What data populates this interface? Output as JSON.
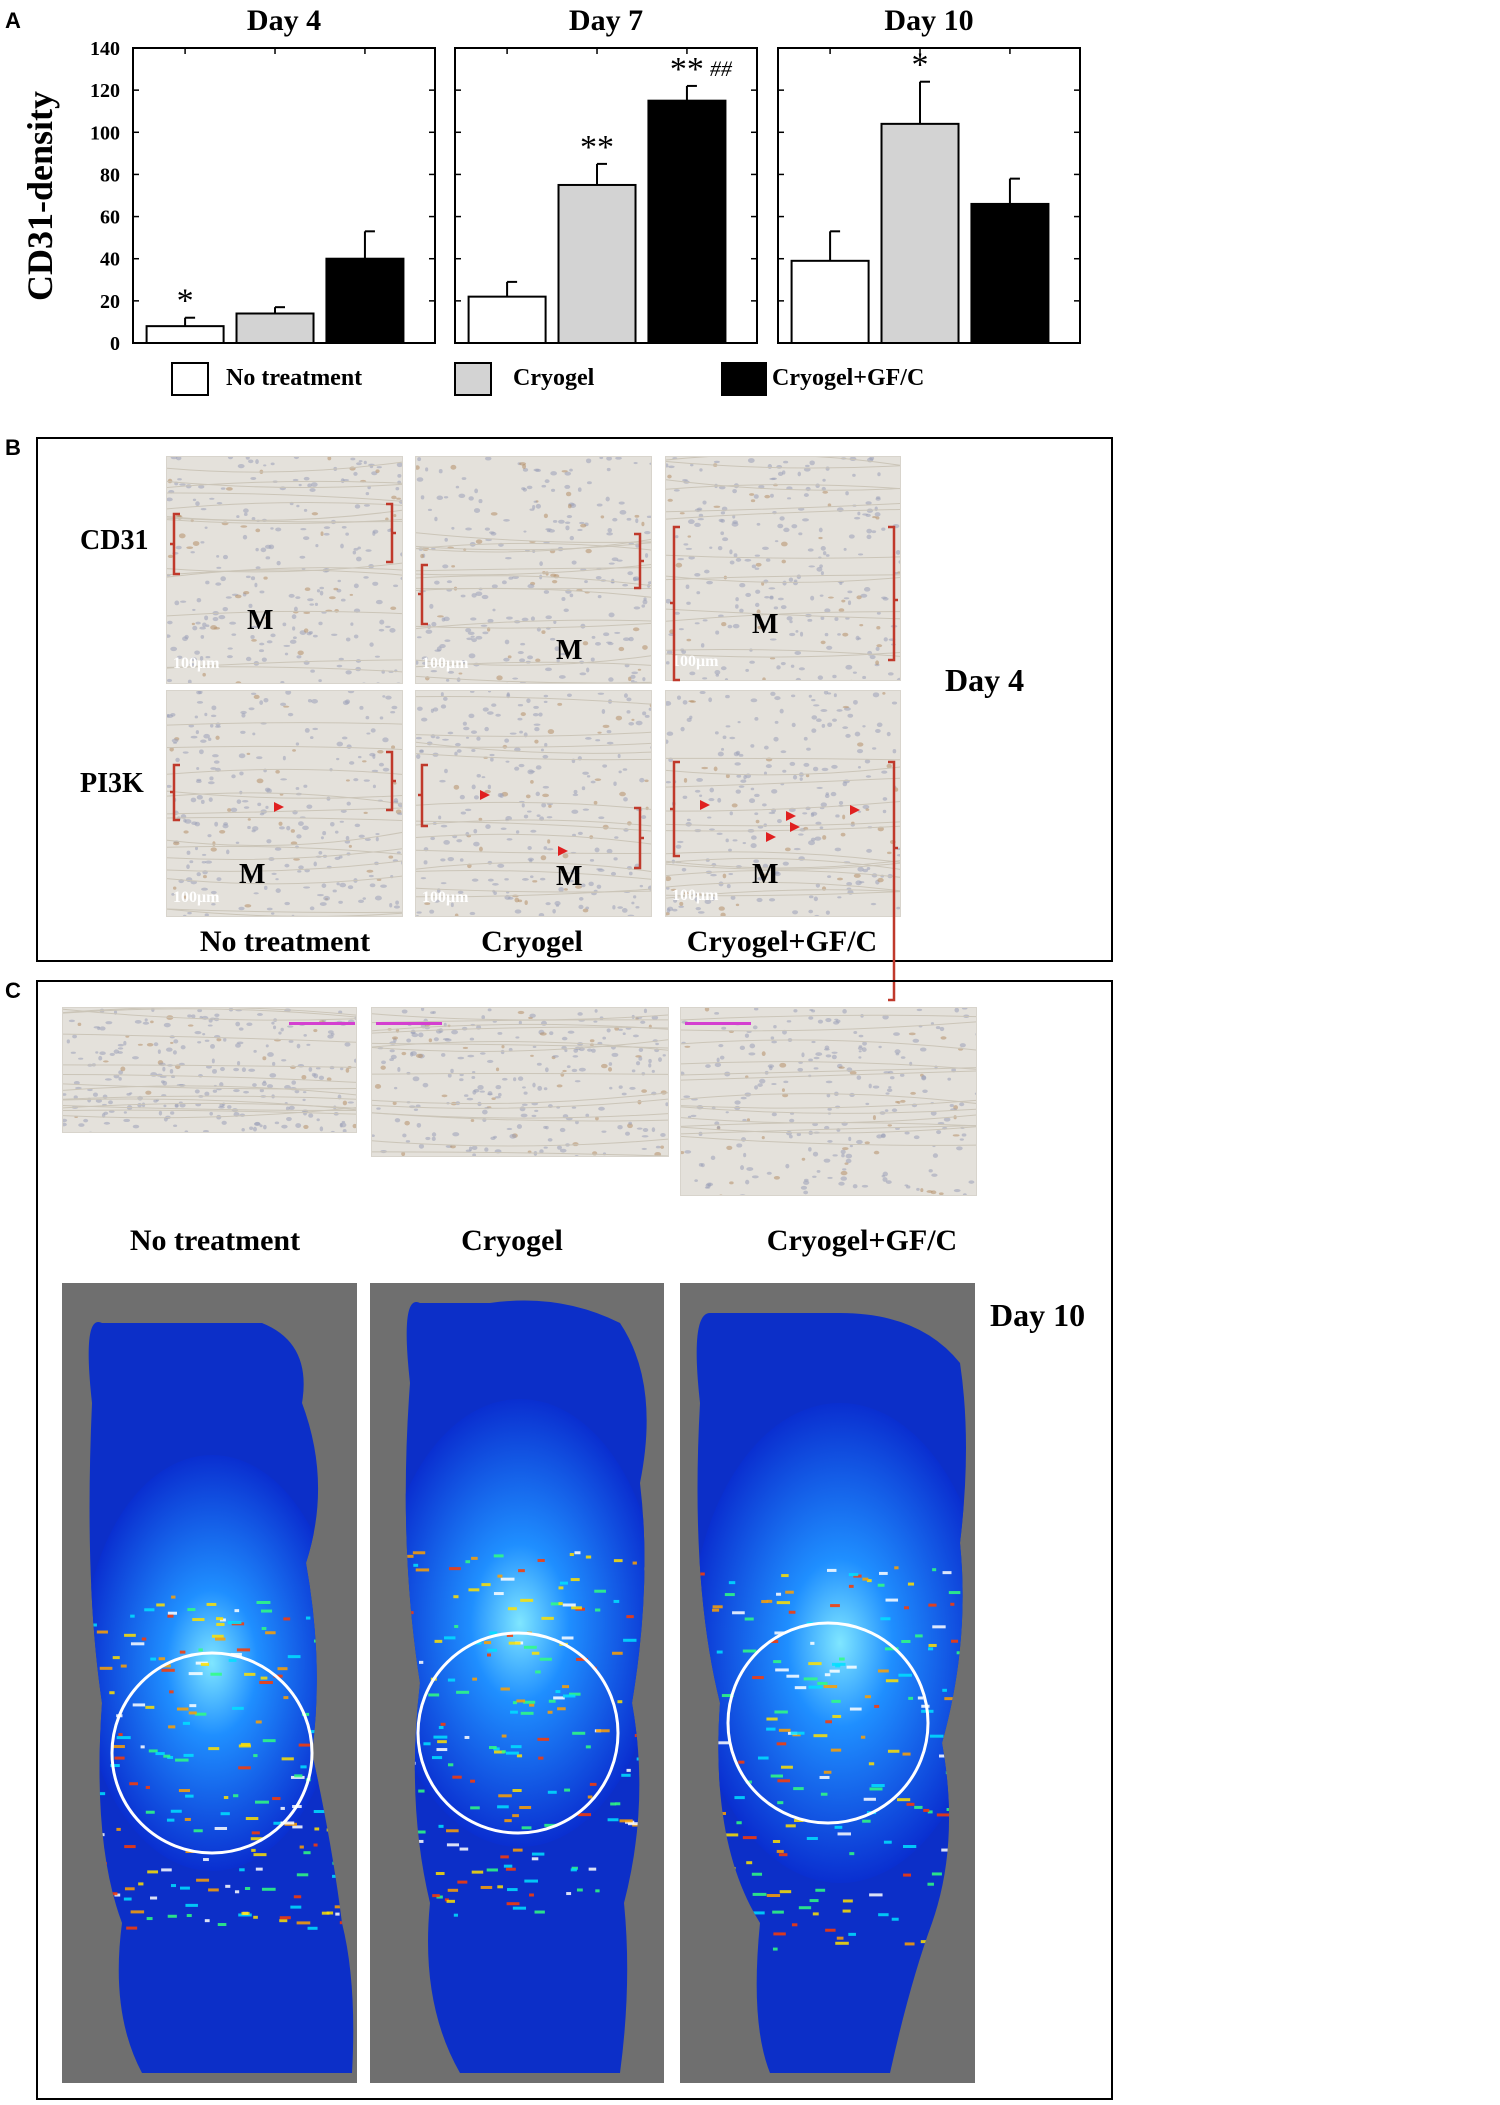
{
  "panels": {
    "a": "A",
    "b": "B",
    "c": "C"
  },
  "chart_data": {
    "type": "bar",
    "ylabel": "CD31-density",
    "ylim": [
      0,
      140
    ],
    "yticks": [
      0,
      20,
      40,
      60,
      80,
      100,
      120,
      140
    ],
    "categories": [
      "Day 4",
      "Day 7",
      "Day 10"
    ],
    "series": [
      {
        "name": "No treatment",
        "color": "#ffffff",
        "values": [
          8,
          22,
          39
        ],
        "errors": [
          4,
          7,
          14
        ]
      },
      {
        "name": "Cryogel",
        "color": "#d3d3d3",
        "values": [
          14,
          75,
          104
        ],
        "errors": [
          3,
          10,
          20
        ]
      },
      {
        "name": "Cryogel+GF/C",
        "color": "#000000",
        "values": [
          40,
          115,
          66
        ],
        "errors": [
          13,
          7,
          12
        ]
      }
    ],
    "annotations": [
      [
        "*",
        "",
        ""
      ],
      [
        "",
        "**",
        "**"
      ],
      [
        "",
        "*",
        ""
      ]
    ],
    "extra_annotation": {
      "day": 1,
      "series": 2,
      "text": "##"
    },
    "legend_position": "bottom"
  },
  "legend": {
    "no_treatment": "No treatment",
    "cryogel": "Cryogel",
    "cryogel_gfc": "Cryogel+GF/C"
  },
  "panel_b": {
    "row1": "CD31",
    "row2": "PI3K",
    "marker": "M",
    "scale": "100μm",
    "columns": [
      "No treatment",
      "Cryogel",
      "Cryogel+GF/C"
    ],
    "day": "Day 4"
  },
  "panel_c": {
    "columns": [
      "No treatment",
      "Cryogel",
      "Cryogel+GF/C"
    ],
    "day": "Day 10"
  }
}
